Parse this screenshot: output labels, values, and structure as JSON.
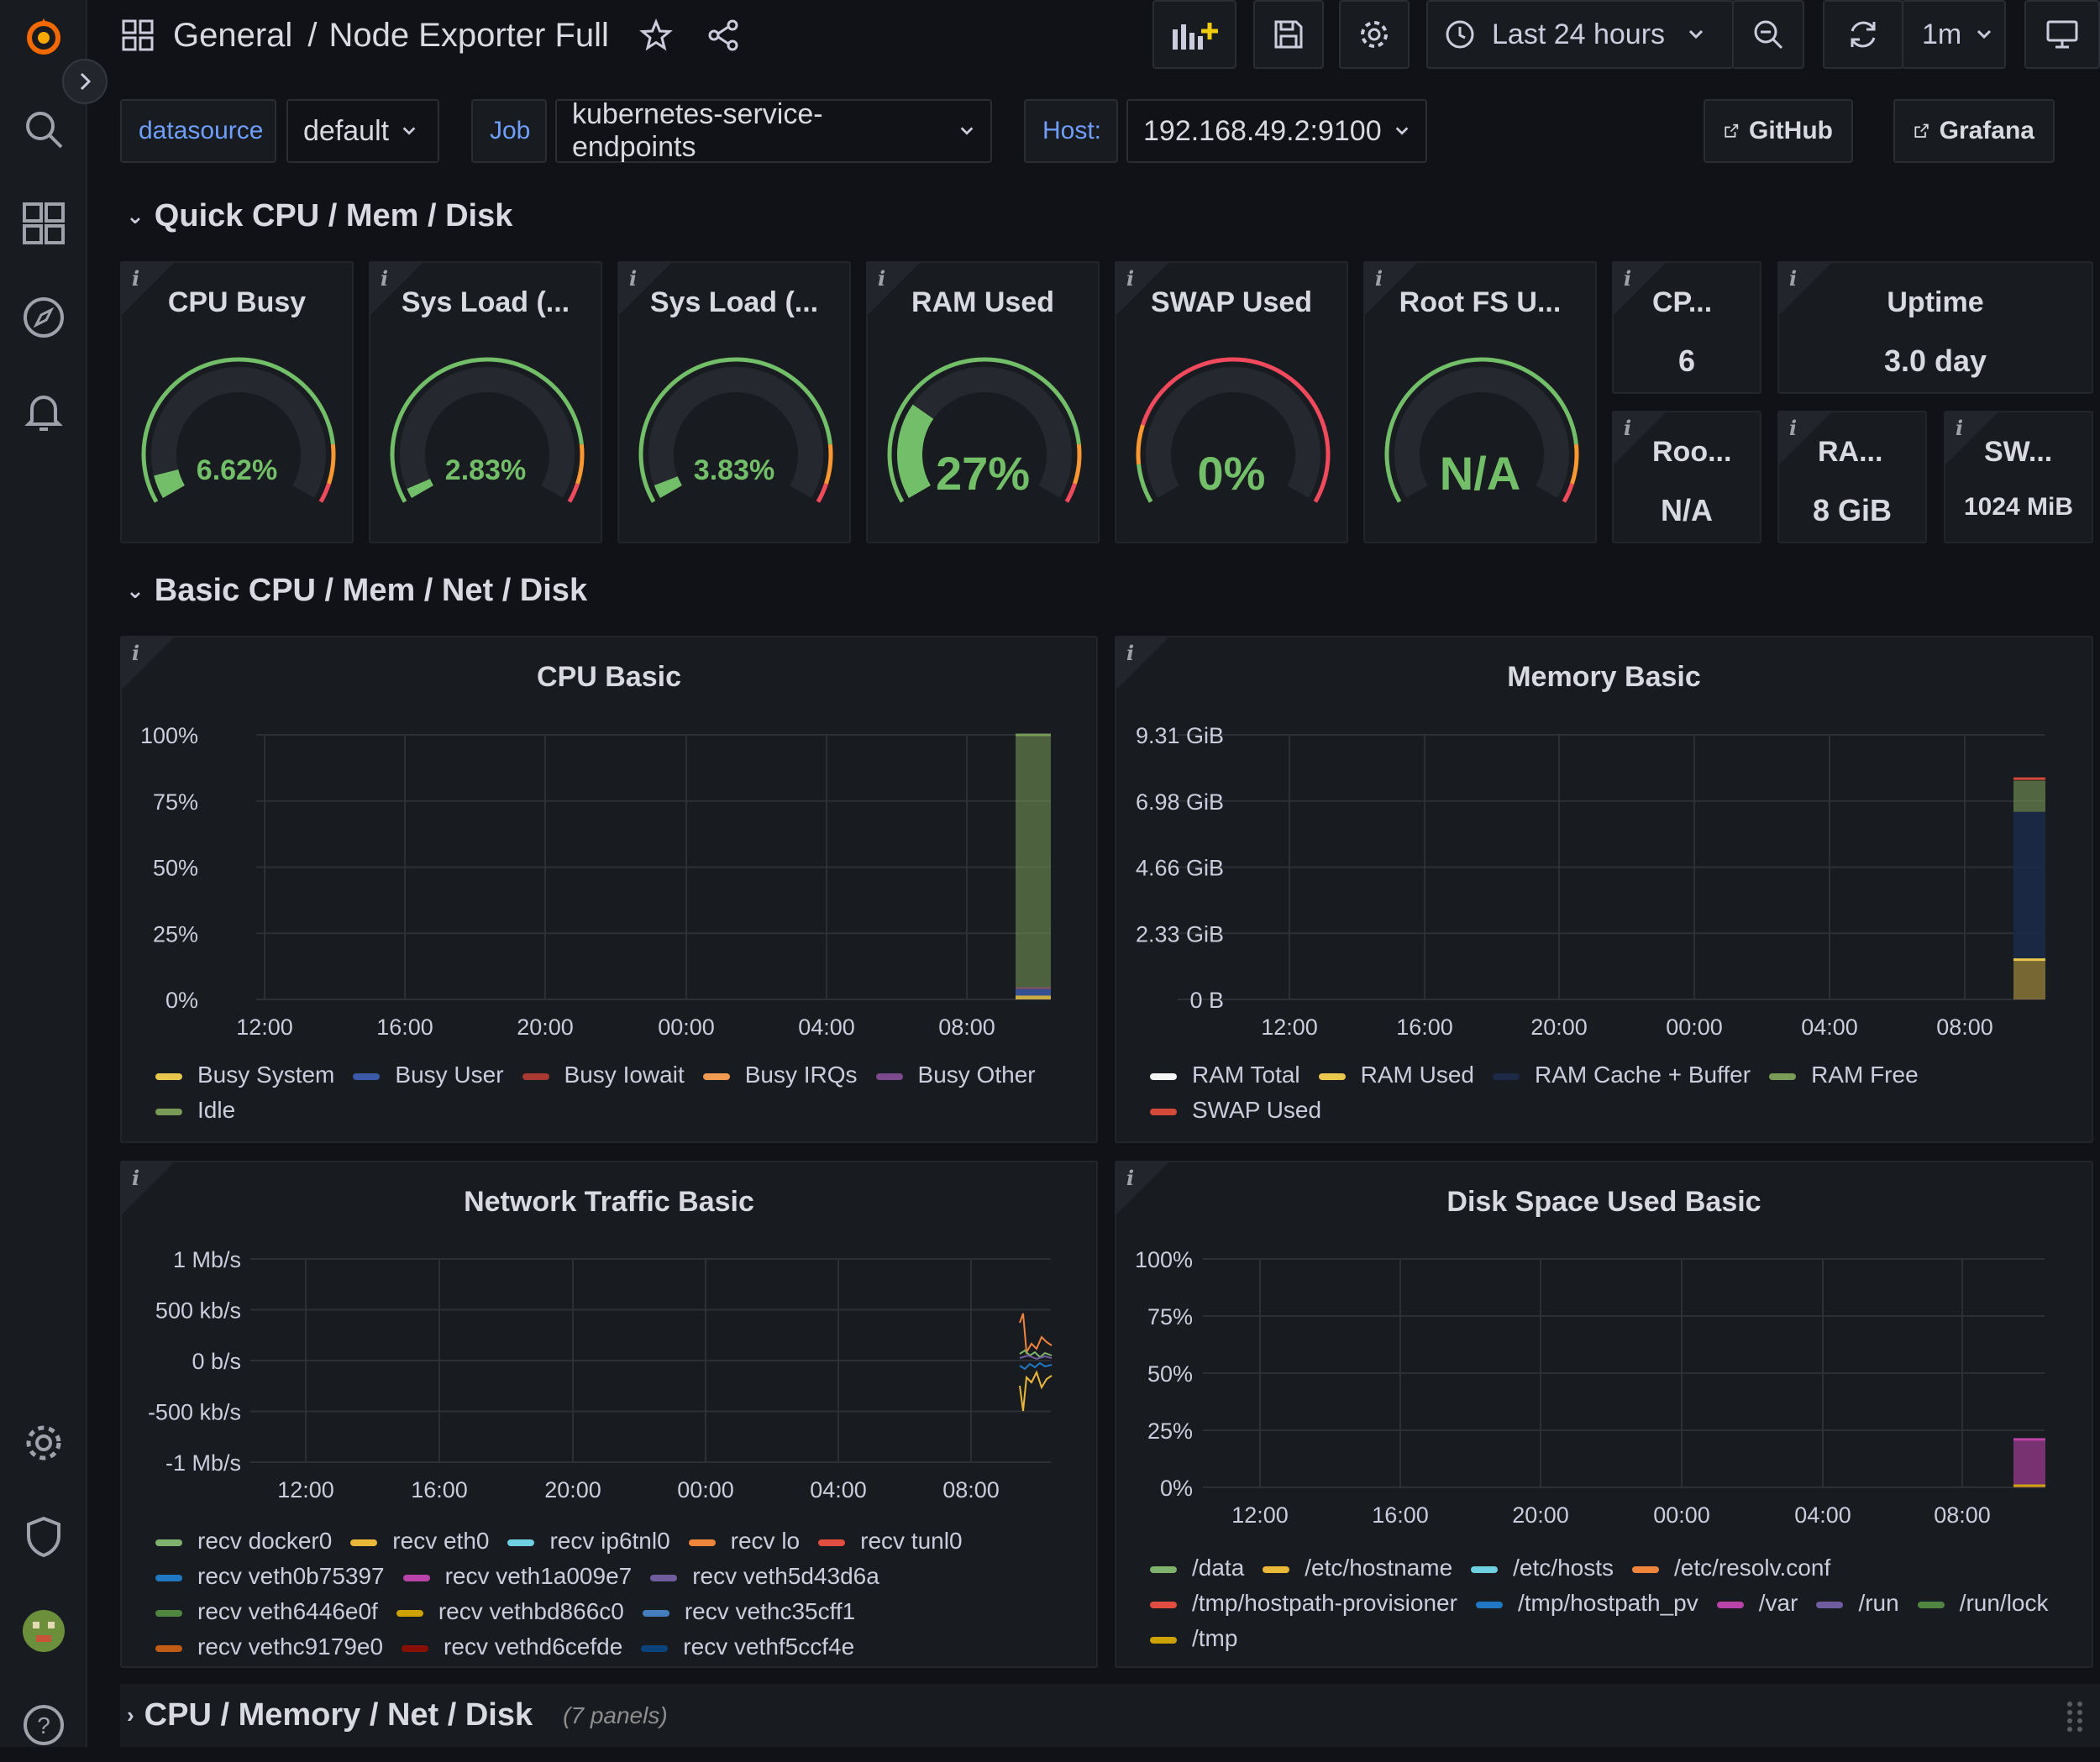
{
  "header": {
    "breadcrumb_folder": "General",
    "breadcrumb_sep": "/",
    "dashboard_title": "Node Exporter Full",
    "time_range": "Last 24 hours",
    "refresh_interval": "1m"
  },
  "variables": {
    "datasource_label": "datasource",
    "datasource_value": "default",
    "job_label": "Job",
    "job_value": "kubernetes-service-endpoints",
    "host_label": "Host:",
    "host_value": "192.168.49.2:9100",
    "link_github": "GitHub",
    "link_grafana": "Grafana"
  },
  "rows": {
    "quick": "Quick CPU / Mem / Disk",
    "basic": "Basic CPU / Mem / Net / Disk",
    "collapsed": "CPU / Memory / Net / Disk",
    "collapsed_count": "(7 panels)"
  },
  "gauges": [
    {
      "title": "CPU Busy",
      "value": "6.62%",
      "fraction": 0.0662
    },
    {
      "title": "Sys Load (...",
      "value": "2.83%",
      "fraction": 0.0283
    },
    {
      "title": "Sys Load (...",
      "value": "3.83%",
      "fraction": 0.0383
    },
    {
      "title": "RAM Used",
      "value": "27%",
      "fraction": 0.27
    },
    {
      "title": "SWAP Used",
      "value": "0%",
      "fraction": 0
    },
    {
      "title": "Root FS U...",
      "value": "N/A",
      "fraction": 0
    }
  ],
  "stats": {
    "cpu_cores": {
      "title": "CP...",
      "value": "6"
    },
    "uptime": {
      "title": "Uptime",
      "value": "3.0 day"
    },
    "rootfs_total": {
      "title": "Roo...",
      "value": "N/A"
    },
    "ram_total": {
      "title": "RA...",
      "value": "8 GiB"
    },
    "swap_total": {
      "title": "SW...",
      "value": "1024 MiB"
    }
  },
  "colors": {
    "green": "#73bf69",
    "orange": "#ff9830",
    "red": "#f2495c",
    "yellow": "#fade2a",
    "blue": "#5794f2",
    "link_blue": "#6e9fff",
    "panel_bg": "#181b1f",
    "page_bg": "#111217"
  },
  "chart_data": [
    {
      "type": "area",
      "title": "CPU Basic",
      "x_ticks": [
        "12:00",
        "16:00",
        "20:00",
        "00:00",
        "04:00",
        "08:00"
      ],
      "y_ticks": [
        "100%",
        "75%",
        "50%",
        "25%",
        "0%"
      ],
      "ylim": [
        0,
        100
      ],
      "series": [
        {
          "name": "Busy System",
          "color": "#e9c64c",
          "values": [
            1.5
          ]
        },
        {
          "name": "Busy User",
          "color": "#3b5ba8",
          "values": [
            2.5
          ]
        },
        {
          "name": "Busy Iowait",
          "color": "#a83a32",
          "values": [
            0.2
          ]
        },
        {
          "name": "Busy IRQs",
          "color": "#f09a52",
          "values": [
            0.1
          ]
        },
        {
          "name": "Busy Other",
          "color": "#7b4a8c",
          "values": [
            0.3
          ]
        },
        {
          "name": "Idle",
          "color": "#7a9a58",
          "values": [
            95.4
          ]
        }
      ]
    },
    {
      "type": "area",
      "title": "Memory Basic",
      "x_ticks": [
        "12:00",
        "16:00",
        "20:00",
        "00:00",
        "04:00",
        "08:00"
      ],
      "y_ticks": [
        "9.31 GiB",
        "6.98 GiB",
        "4.66 GiB",
        "2.33 GiB",
        "0 B"
      ],
      "ylim": [
        0,
        9.31
      ],
      "series": [
        {
          "name": "RAM Total",
          "color": "#f4f4f4",
          "values": [
            7.77
          ]
        },
        {
          "name": "RAM Used",
          "color": "#e9c64c",
          "values": [
            1.4
          ]
        },
        {
          "name": "RAM Cache + Buffer",
          "color": "#1c2a47",
          "values": [
            5.2
          ]
        },
        {
          "name": "RAM Free",
          "color": "#7a9a58",
          "values": [
            1.1
          ]
        },
        {
          "name": "SWAP Used",
          "color": "#d44a3a",
          "values": [
            0
          ]
        }
      ]
    },
    {
      "type": "line",
      "title": "Network Traffic Basic",
      "x_ticks": [
        "12:00",
        "16:00",
        "20:00",
        "00:00",
        "04:00",
        "08:00"
      ],
      "y_ticks": [
        "1 Mb/s",
        "500 kb/s",
        "0 b/s",
        "-500 kb/s",
        "-1 Mb/s"
      ],
      "ylim": [
        -1000,
        1000
      ],
      "series": [
        {
          "name": "recv docker0",
          "color": "#7eb26d"
        },
        {
          "name": "recv eth0",
          "color": "#eab839"
        },
        {
          "name": "recv ip6tnl0",
          "color": "#6ed0e0"
        },
        {
          "name": "recv lo",
          "color": "#ef843c"
        },
        {
          "name": "recv tunl0",
          "color": "#e24d42"
        },
        {
          "name": "recv veth0b75397",
          "color": "#1f78c1"
        },
        {
          "name": "recv veth1a009e7",
          "color": "#ba43a9"
        },
        {
          "name": "recv veth5d43d6a",
          "color": "#705da0"
        },
        {
          "name": "recv veth6446e0f",
          "color": "#508642"
        },
        {
          "name": "recv vethbd866c0",
          "color": "#cca300"
        },
        {
          "name": "recv vethc35cff1",
          "color": "#447ebc"
        },
        {
          "name": "recv vethc9179e0",
          "color": "#c15c17"
        },
        {
          "name": "recv vethd6cefde",
          "color": "#890f02"
        },
        {
          "name": "recv vethf5ccf4e",
          "color": "#0a437c"
        }
      ]
    },
    {
      "type": "area",
      "title": "Disk Space Used Basic",
      "x_ticks": [
        "12:00",
        "16:00",
        "20:00",
        "00:00",
        "04:00",
        "08:00"
      ],
      "y_ticks": [
        "100%",
        "75%",
        "50%",
        "25%",
        "0%"
      ],
      "ylim": [
        0,
        100
      ],
      "series": [
        {
          "name": "/data",
          "color": "#7eb26d"
        },
        {
          "name": "/etc/hostname",
          "color": "#eab839"
        },
        {
          "name": "/etc/hosts",
          "color": "#6ed0e0"
        },
        {
          "name": "/etc/resolv.conf",
          "color": "#ef843c"
        },
        {
          "name": "/tmp/hostpath-provisioner",
          "color": "#e24d42"
        },
        {
          "name": "/tmp/hostpath_pv",
          "color": "#1f78c1"
        },
        {
          "name": "/var",
          "color": "#ba43a9",
          "values": [
            21
          ]
        },
        {
          "name": "/run",
          "color": "#705da0"
        },
        {
          "name": "/run/lock",
          "color": "#508642"
        },
        {
          "name": "/tmp",
          "color": "#cca300"
        }
      ]
    }
  ]
}
